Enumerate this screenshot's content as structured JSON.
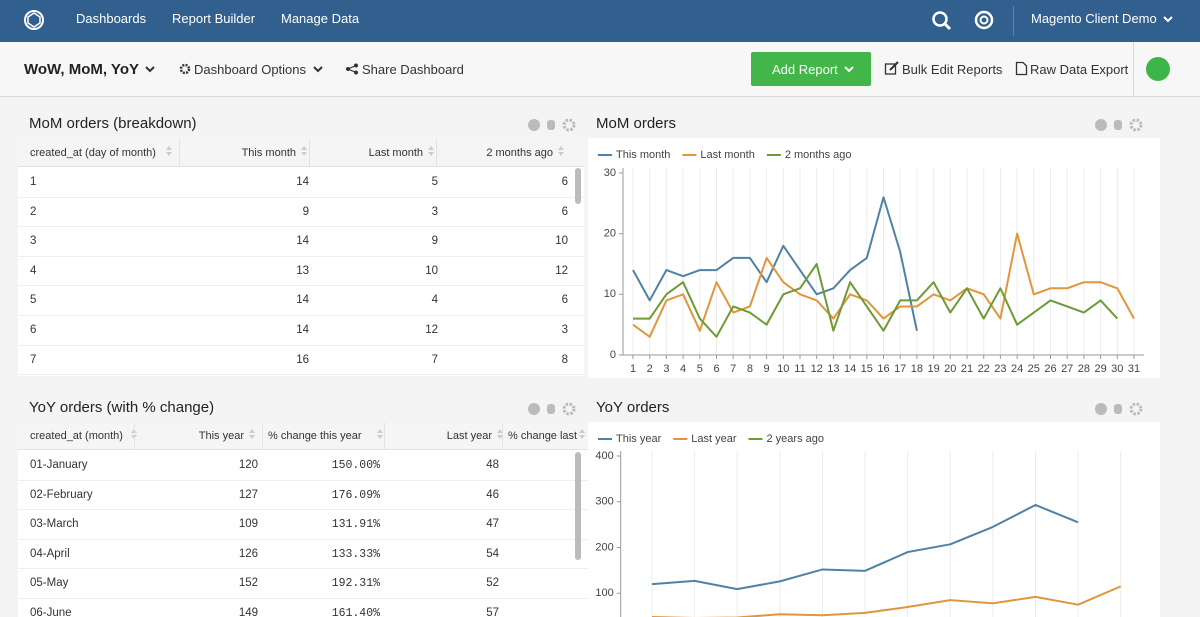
{
  "nav": {
    "items": [
      "Dashboards",
      "Report Builder",
      "Manage Data"
    ],
    "account": "Magento Client Demo"
  },
  "toolbar": {
    "dashboard": "WoW, MoM, YoY",
    "options": "Dashboard Options",
    "share": "Share Dashboard",
    "add_report": "Add Report",
    "bulk_edit": "Bulk Edit Reports",
    "export": "Raw Data Export"
  },
  "tables": [
    {
      "title": "MoM orders (breakdown)",
      "columns": [
        "created_at (day of month)",
        "This month",
        "Last month",
        "2 months ago"
      ],
      "rows": [
        [
          1,
          14,
          5,
          6
        ],
        [
          2,
          9,
          3,
          6
        ],
        [
          3,
          14,
          9,
          10
        ],
        [
          4,
          13,
          10,
          12
        ],
        [
          5,
          14,
          4,
          6
        ],
        [
          6,
          14,
          12,
          3
        ],
        [
          7,
          16,
          7,
          8
        ]
      ]
    },
    {
      "title": "YoY orders (with % change)",
      "columns": [
        "created_at (month)",
        "This year",
        "% change this year",
        "Last year",
        "% change last"
      ],
      "rows": [
        [
          "01-January",
          120,
          "150.00%",
          48
        ],
        [
          "02-February",
          127,
          "176.09%",
          46
        ],
        [
          "03-March",
          109,
          "131.91%",
          47
        ],
        [
          "04-April",
          126,
          "133.33%",
          54
        ],
        [
          "05-May",
          152,
          "192.31%",
          52
        ],
        [
          "06-June",
          149,
          "161.40%",
          57
        ]
      ]
    }
  ],
  "chart_data": [
    {
      "type": "line",
      "title": "MoM orders",
      "categories": [
        "1",
        "2",
        "3",
        "4",
        "5",
        "6",
        "7",
        "8",
        "9",
        "10",
        "11",
        "12",
        "13",
        "14",
        "15",
        "16",
        "17",
        "18",
        "19",
        "20",
        "21",
        "22",
        "23",
        "24",
        "25",
        "26",
        "27",
        "28",
        "29",
        "30",
        "31"
      ],
      "series": [
        {
          "name": "This month",
          "color": "#4f82a3",
          "values": [
            14,
            9,
            14,
            13,
            14,
            14,
            16,
            16,
            12,
            18,
            14,
            10,
            11,
            14,
            16,
            26,
            17,
            4,
            null,
            null,
            null,
            null,
            null,
            null,
            null,
            null,
            null,
            null,
            null,
            null,
            null
          ]
        },
        {
          "name": "Last month",
          "color": "#e3953a",
          "values": [
            5,
            3,
            9,
            10,
            4,
            12,
            7,
            8,
            16,
            12,
            10,
            9,
            6,
            10,
            9,
            6,
            8,
            8,
            10,
            9,
            11,
            10,
            6,
            20,
            10,
            11,
            11,
            12,
            12,
            11,
            6
          ]
        },
        {
          "name": "2 months ago",
          "color": "#6d9b35",
          "values": [
            6,
            6,
            10,
            12,
            6,
            3,
            8,
            7,
            5,
            10,
            11,
            15,
            4,
            12,
            8,
            4,
            9,
            9,
            12,
            7,
            11,
            6,
            11,
            5,
            7,
            9,
            8,
            7,
            9,
            6,
            null
          ]
        }
      ],
      "ylim": [
        0,
        30
      ],
      "yticks": [
        0,
        10,
        20,
        30
      ],
      "grid": true
    },
    {
      "type": "line",
      "title": "YoY orders",
      "categories": [
        null,
        null,
        null,
        null,
        null,
        null,
        null,
        null,
        null,
        null,
        null,
        null
      ],
      "series": [
        {
          "name": "This year",
          "color": "#4f82a3",
          "values": [
            120,
            127,
            109,
            126,
            152,
            149,
            190,
            207,
            245,
            293,
            255,
            null
          ]
        },
        {
          "name": "Last year",
          "color": "#e3953a",
          "values": [
            48,
            46,
            47,
            54,
            52,
            57,
            70,
            85,
            78,
            92,
            75,
            115
          ]
        },
        {
          "name": "2 years ago",
          "color": "#6d9b35",
          "values": [
            null,
            null,
            null,
            null,
            null,
            null,
            null,
            null,
            null,
            null,
            null,
            null
          ]
        }
      ],
      "ylim": [
        0,
        400
      ],
      "yticks": [
        100,
        200,
        300,
        400
      ],
      "grid": true
    }
  ]
}
